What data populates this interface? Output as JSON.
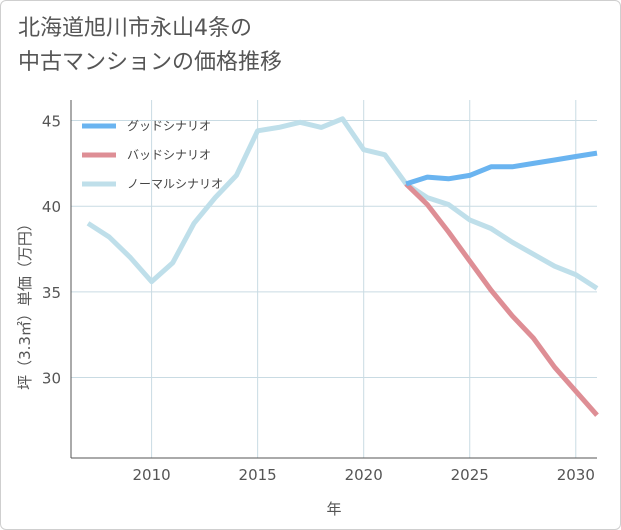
{
  "title_line1": "北海道旭川市永山4条の",
  "title_line2": "中古マンションの価格推移",
  "chart_data": {
    "type": "line",
    "xlabel": "年",
    "ylabel": "坪（3.3㎡）単価（万円）",
    "xlim": [
      2006.2,
      2031
    ],
    "ylim": [
      25.3,
      46.2
    ],
    "x_ticks": [
      2010,
      2015,
      2020,
      2025,
      2030
    ],
    "y_ticks": [
      30,
      35,
      40,
      45
    ],
    "grid": true,
    "legend_position": "top-left",
    "series": [
      {
        "name": "グッドシナリオ",
        "color": "#6ab4f0",
        "points": [
          [
            2022,
            41.3
          ],
          [
            2023,
            41.7
          ],
          [
            2024,
            41.6
          ],
          [
            2025,
            41.8
          ],
          [
            2026,
            42.3
          ],
          [
            2027,
            42.3
          ],
          [
            2028,
            42.5
          ],
          [
            2029,
            42.7
          ],
          [
            2030,
            42.9
          ],
          [
            2031,
            43.1
          ]
        ]
      },
      {
        "name": "バッドシナリオ",
        "color": "#de8e95",
        "points": [
          [
            2022,
            41.3
          ],
          [
            2023,
            40.1
          ],
          [
            2024,
            38.5
          ],
          [
            2025,
            36.8
          ],
          [
            2026,
            35.1
          ],
          [
            2027,
            33.6
          ],
          [
            2028,
            32.3
          ],
          [
            2029,
            30.6
          ],
          [
            2030,
            29.2
          ],
          [
            2031,
            27.8
          ]
        ]
      },
      {
        "name": "ノーマルシナリオ",
        "color": "#bfdfea",
        "points": [
          [
            2007,
            39.0
          ],
          [
            2008,
            38.2
          ],
          [
            2009,
            37.0
          ],
          [
            2010,
            35.6
          ],
          [
            2011,
            36.7
          ],
          [
            2012,
            39.0
          ],
          [
            2013,
            40.5
          ],
          [
            2014,
            41.8
          ],
          [
            2015,
            44.4
          ],
          [
            2016,
            44.6
          ],
          [
            2017,
            44.9
          ],
          [
            2018,
            44.6
          ],
          [
            2019,
            45.1
          ],
          [
            2020,
            43.3
          ],
          [
            2021,
            43.0
          ],
          [
            2022,
            41.3
          ],
          [
            2023,
            40.5
          ],
          [
            2024,
            40.1
          ],
          [
            2025,
            39.2
          ],
          [
            2026,
            38.7
          ],
          [
            2027,
            37.9
          ],
          [
            2028,
            37.2
          ],
          [
            2029,
            36.5
          ],
          [
            2030,
            36.0
          ],
          [
            2031,
            35.2
          ]
        ]
      }
    ]
  }
}
